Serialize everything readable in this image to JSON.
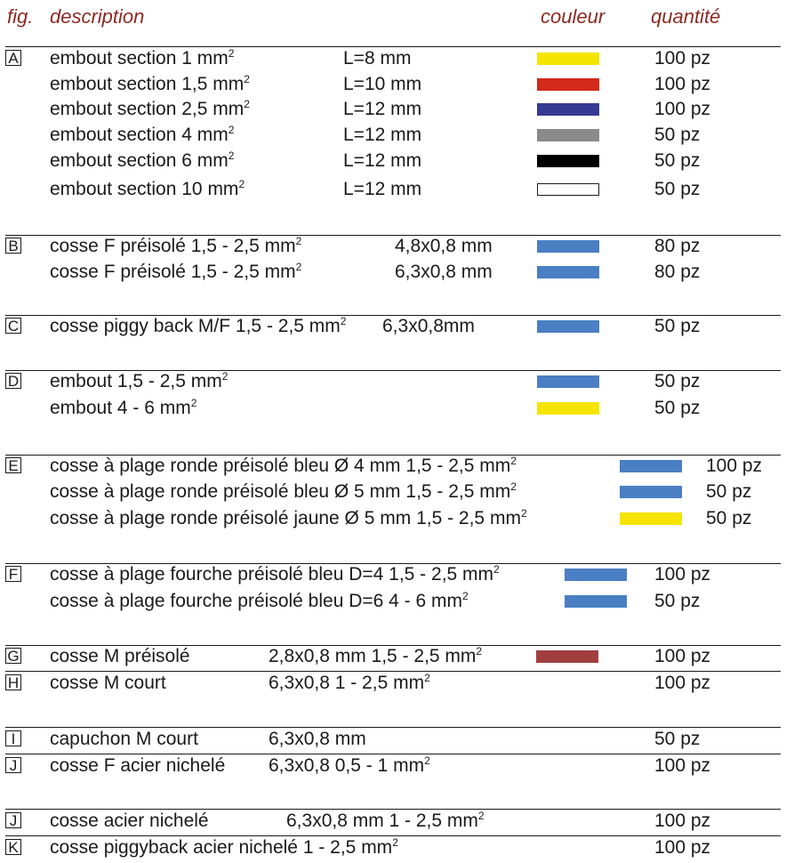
{
  "header": {
    "fig": "fig.",
    "description": "description",
    "couleur": "couleur",
    "quantite": "quantité"
  },
  "rows": [
    {
      "fig": "A",
      "desc": "embout section  1 mm",
      "sup": "2",
      "dim": "L=8 mm",
      "color": "#f5e400",
      "qty": "100 pz"
    },
    {
      "fig": "",
      "desc": "embout section  1,5 mm",
      "sup": "2",
      "dim": "L=10 mm",
      "color": "#d42a1c",
      "qty": "100 pz"
    },
    {
      "fig": "",
      "desc": "embout section 2,5  mm",
      "sup": "2",
      "dim": "L=12 mm",
      "color": "#363a93",
      "qty": "100 pz"
    },
    {
      "fig": "",
      "desc": "embout section  4 mm",
      "sup": "2",
      "dim": "L=12 mm",
      "color": "#8a8a8a",
      "qty": "50 pz"
    },
    {
      "fig": "",
      "desc": "embout section 6 mm",
      "sup": "2",
      "dim": "L=12 mm",
      "color": "#000000",
      "qty": "50 pz"
    },
    {
      "fig": "",
      "desc": "embout section 10   mm",
      "sup": "2",
      "dim": "L=12 mm",
      "color": "#ffffff",
      "qty": "50 pz"
    },
    {
      "fig": "B",
      "desc": "cosse F préisolé 1,5 - 2,5 mm",
      "sup": "2",
      "dim": "4,8x0,8 mm",
      "color": "#4a7fc4",
      "qty": "80 pz"
    },
    {
      "fig": "",
      "desc": "cosse F préisolé 1,5 - 2,5 mm",
      "sup": "2",
      "dim": "6,3x0,8 mm",
      "color": "#4a7fc4",
      "qty": "80 pz"
    },
    {
      "fig": "C",
      "desc": "cosse piggy back M/F 1,5 - 2,5 mm",
      "sup": "2",
      "dim": "6,3x0,8mm",
      "color": "#4a7fc4",
      "qty": "50 pz"
    },
    {
      "fig": "D",
      "desc": "embout 1,5 - 2,5 mm",
      "sup": "2",
      "dim": "",
      "color": "#4a7fc4",
      "qty": "50 pz"
    },
    {
      "fig": "",
      "desc": "embout 4 - 6 mm",
      "sup": "2",
      "dim": "",
      "color": "#f5e400",
      "qty": "50 pz"
    },
    {
      "fig": "E",
      "desc": "cosse à plage ronde préisolé bleu  Ø 4 mm 1,5 - 2,5 mm",
      "sup": "2",
      "dim": "",
      "color": "#4a7fc4",
      "qty": "100 pz"
    },
    {
      "fig": "",
      "desc": "cosse à plage ronde préisolé bleu  Ø 5 mm 1,5 - 2,5 mm",
      "sup": "2",
      "dim": "",
      "color": "#4a7fc4",
      "qty": "50 pz"
    },
    {
      "fig": "",
      "desc": "cosse à plage ronde préisolé jaune Ø 5 mm 1,5 - 2,5 mm",
      "sup": "2",
      "dim": "",
      "color": "#f5e400",
      "qty": "50 pz"
    },
    {
      "fig": "F",
      "desc": "cosse à plage fourche préisolé bleu  D=4 1,5 - 2,5 mm",
      "sup": "2",
      "dim": "",
      "color": "#4a7fc4",
      "qty": "100 pz"
    },
    {
      "fig": "",
      "desc": "cosse à plage fourche préisolé bleu  D=6 4 - 6 mm",
      "sup": "2",
      "dim": "",
      "color": "#4a7fc4",
      "qty": "50 pz"
    },
    {
      "fig": "G",
      "desc": "cosse M  préisolé",
      "sup": "",
      "dim": "2,8x0,8  mm 1,5 - 2,5 mm",
      "dimsup": "2",
      "color": "#a13e40",
      "qty": "100 pz"
    },
    {
      "fig": "H",
      "desc": "cosse M  court",
      "sup": "",
      "dim": "6,3x0,8  1 - 2,5 mm",
      "dimsup": "2",
      "color": "",
      "qty": "100 pz"
    },
    {
      "fig": "I",
      "desc": "capuchon M court",
      "sup": "",
      "dim": "6,3x0,8 mm",
      "color": "",
      "qty": "50 pz"
    },
    {
      "fig": "J",
      "desc": "cosse F acier nichelé",
      "sup": "",
      "dim": "6,3x0,8 0,5 - 1 mm",
      "dimsup": "2",
      "color": "",
      "qty": "100 pz"
    },
    {
      "fig": "J",
      "desc": "cosse acier nichelé",
      "sup": "",
      "dim": "6,3x0,8 mm 1 - 2,5 mm",
      "dimsup": "2",
      "color": "",
      "qty": "100 pz"
    },
    {
      "fig": "K",
      "desc": "cosse piggyback acier nichelé  1 - 2,5 mm",
      "sup": "2",
      "dim": "",
      "color": "",
      "qty": "100 pz"
    }
  ]
}
